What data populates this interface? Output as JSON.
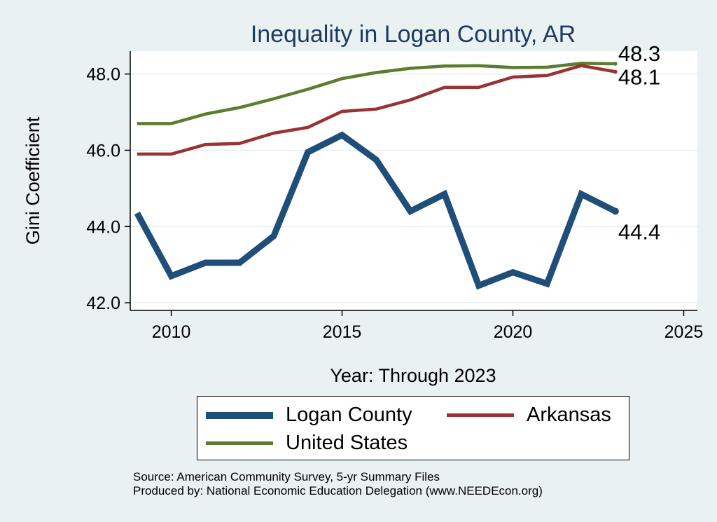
{
  "chart_data": {
    "type": "line",
    "title": "Inequality in Logan County, AR",
    "xlabel": "Year: Through 2023",
    "ylabel": "Gini Coefficient",
    "xlim": [
      2008.8,
      2025.4
    ],
    "ylim": [
      41.8,
      48.6
    ],
    "xticks": [
      2010,
      2015,
      2020,
      2025
    ],
    "yticks": [
      42.0,
      44.0,
      46.0,
      48.0
    ],
    "grid": true,
    "x": [
      2009,
      2010,
      2011,
      2012,
      2013,
      2014,
      2015,
      2016,
      2017,
      2018,
      2019,
      2020,
      2021,
      2022,
      2023
    ],
    "series": [
      {
        "name": "Logan County",
        "color": "#1f4e79",
        "values": [
          44.35,
          42.7,
          43.05,
          43.05,
          43.75,
          45.95,
          46.4,
          45.75,
          44.4,
          44.85,
          42.45,
          42.8,
          42.5,
          44.85,
          44.4
        ],
        "end_label": "44.4"
      },
      {
        "name": "Arkansas",
        "color": "#993333",
        "values": [
          45.9,
          45.9,
          46.15,
          46.18,
          46.45,
          46.6,
          47.02,
          47.08,
          47.32,
          47.65,
          47.65,
          47.92,
          47.96,
          48.22,
          48.06
        ],
        "end_label": "48.1"
      },
      {
        "name": "United States",
        "color": "#5a7d2e",
        "values": [
          46.7,
          46.7,
          46.95,
          47.12,
          47.35,
          47.6,
          47.88,
          48.04,
          48.15,
          48.21,
          48.22,
          48.17,
          48.18,
          48.28,
          48.27
        ],
        "end_label": "48.3"
      }
    ]
  },
  "legend": {
    "items": [
      {
        "label": "Logan County",
        "color": "#1f4e79"
      },
      {
        "label": "Arkansas",
        "color": "#993333"
      },
      {
        "label": "United States",
        "color": "#5a7d2e"
      }
    ]
  },
  "source": {
    "line1": "Source: American Community Survey, 5-yr Summary Files",
    "line2": "Produced by: National Economic Education Delegation (www.NEEDEcon.org)"
  }
}
